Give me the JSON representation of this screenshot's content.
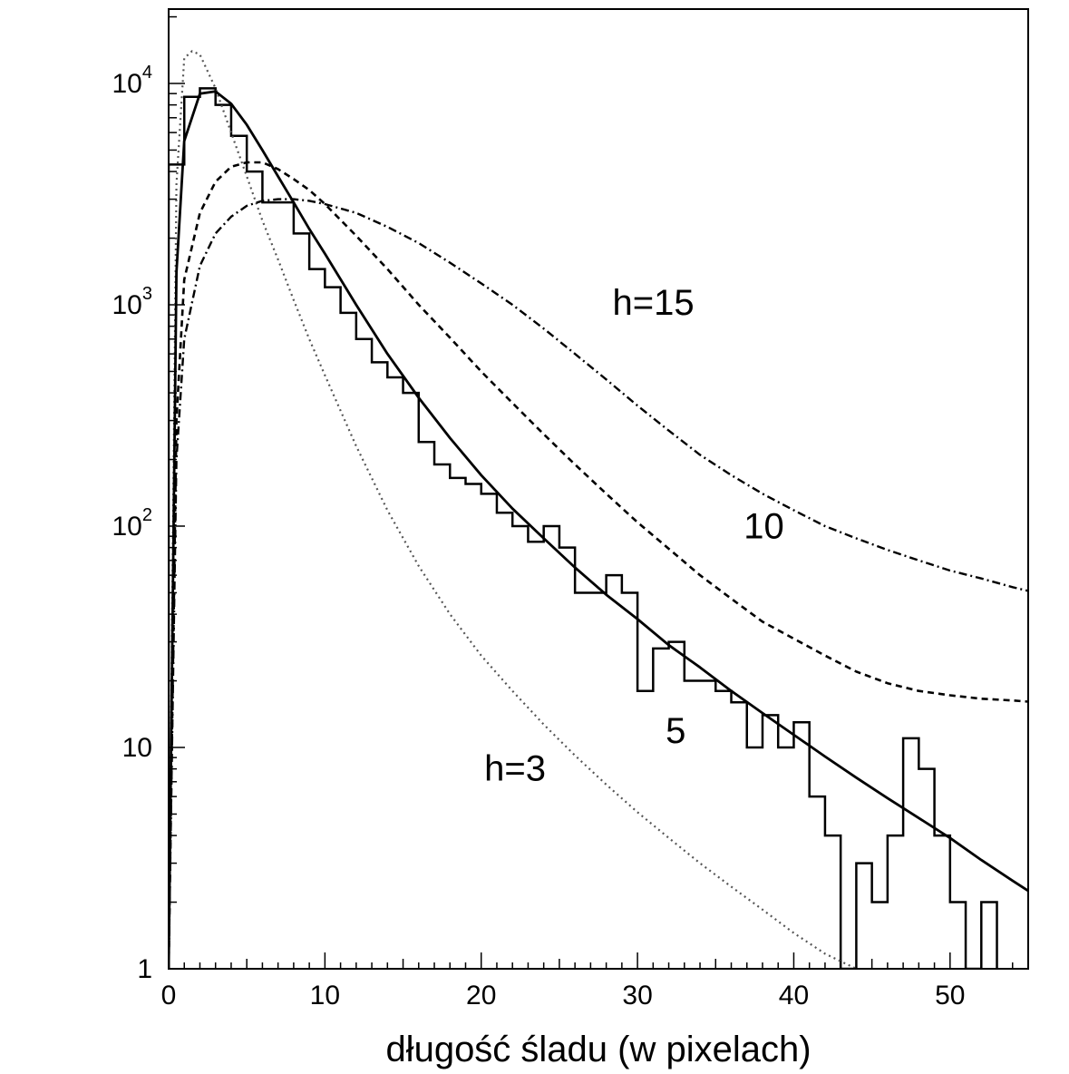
{
  "chart_data": {
    "type": "line",
    "title": "",
    "xlabel": "długość śladu (w pixelach)",
    "ylabel": "",
    "xlim": [
      0,
      55
    ],
    "ylim": [
      1,
      20000
    ],
    "yscale": "log",
    "grid": false,
    "x_ticks": [
      {
        "value": 0,
        "label": "0"
      },
      {
        "value": 10,
        "label": "10"
      },
      {
        "value": 20,
        "label": "20"
      },
      {
        "value": 30,
        "label": "30"
      },
      {
        "value": 40,
        "label": "40"
      },
      {
        "value": 50,
        "label": "50"
      }
    ],
    "y_ticks": [
      {
        "value": 1,
        "base": "1",
        "exp": ""
      },
      {
        "value": 10,
        "base": "10",
        "exp": ""
      },
      {
        "value": 100,
        "base": "10",
        "exp": "2"
      },
      {
        "value": 1000,
        "base": "10",
        "exp": "3"
      },
      {
        "value": 10000,
        "base": "10",
        "exp": "4"
      }
    ],
    "histogram": {
      "bin_width": 1,
      "bin_starts": [
        0,
        1,
        2,
        3,
        4,
        5,
        6,
        7,
        8,
        9,
        10,
        11,
        12,
        13,
        14,
        15,
        16,
        17,
        18,
        19,
        20,
        21,
        22,
        23,
        24,
        25,
        26,
        27,
        28,
        29,
        30,
        31,
        32,
        33,
        34,
        35,
        36,
        37,
        38,
        39,
        40,
        41,
        42,
        43,
        44,
        45,
        46,
        47,
        48,
        49,
        50,
        51,
        52
      ],
      "counts": [
        4300,
        8700,
        9500,
        8000,
        5800,
        4000,
        2900,
        2900,
        2100,
        1450,
        1200,
        920,
        700,
        550,
        470,
        400,
        240,
        190,
        165,
        155,
        140,
        115,
        100,
        85,
        100,
        80,
        50,
        50,
        60,
        50,
        18,
        28,
        30,
        20,
        20,
        18,
        16,
        10,
        14,
        10,
        13,
        6,
        4,
        0,
        3,
        2,
        4,
        11,
        8,
        4,
        2,
        0,
        2
      ]
    },
    "series": [
      {
        "name": "h=3",
        "style": "dotted",
        "x": [
          0,
          0.5,
          1,
          1.5,
          2,
          3,
          4,
          5,
          6,
          7,
          8,
          9,
          10,
          12,
          14,
          16,
          18,
          20,
          22,
          24,
          26,
          28,
          30,
          32,
          34,
          36,
          38,
          40,
          42,
          44,
          46
        ],
        "y": [
          1,
          3500,
          13000,
          14000,
          13500,
          9500,
          6000,
          3800,
          2400,
          1600,
          1050,
          700,
          480,
          230,
          118,
          66,
          40,
          26,
          18,
          12.7,
          9.2,
          6.8,
          5.1,
          3.9,
          3.0,
          2.35,
          1.85,
          1.45,
          1.17,
          1.0,
          0.82
        ]
      },
      {
        "name": "5",
        "style": "solid",
        "x": [
          0,
          0.5,
          1,
          2,
          3,
          4,
          5,
          6,
          7,
          8,
          9,
          10,
          12,
          14,
          16,
          18,
          20,
          22,
          24,
          26,
          28,
          30,
          32,
          34,
          36,
          38,
          40,
          42,
          44,
          46,
          48,
          50,
          52,
          54,
          55
        ],
        "y": [
          1,
          1400,
          5500,
          9000,
          9200,
          8100,
          6500,
          5000,
          3800,
          2900,
          2200,
          1700,
          1000,
          600,
          380,
          250,
          170,
          120,
          88,
          65,
          49,
          38,
          29,
          23,
          18,
          14.3,
          11.4,
          9.1,
          7.3,
          5.9,
          4.8,
          3.9,
          3.1,
          2.5,
          2.25
        ]
      },
      {
        "name": "10",
        "style": "dashed",
        "x": [
          0,
          0.5,
          1,
          2,
          3,
          4,
          5,
          6,
          7,
          8,
          9,
          10,
          12,
          14,
          16,
          18,
          20,
          22,
          24,
          26,
          28,
          30,
          32,
          34,
          36,
          38,
          40,
          42,
          44,
          46,
          48,
          50,
          52,
          54,
          55
        ],
        "y": [
          1,
          300,
          1300,
          2600,
          3600,
          4200,
          4400,
          4400,
          4100,
          3700,
          3300,
          2850,
          2050,
          1450,
          1000,
          710,
          500,
          360,
          260,
          190,
          140,
          104,
          79,
          60,
          47,
          37,
          31,
          26,
          22,
          19.5,
          18,
          17.2,
          16.6,
          16.3,
          16.1
        ]
      },
      {
        "name": "h=15",
        "style": "dashdot",
        "x": [
          0,
          0.5,
          1,
          2,
          3,
          4,
          5,
          6,
          7,
          8,
          9,
          10,
          12,
          14,
          16,
          18,
          20,
          22,
          24,
          26,
          28,
          30,
          32,
          34,
          36,
          38,
          40,
          42,
          44,
          46,
          48,
          50,
          52,
          54,
          55
        ],
        "y": [
          1,
          200,
          700,
          1500,
          2100,
          2500,
          2800,
          2950,
          3000,
          3000,
          2950,
          2850,
          2600,
          2250,
          1900,
          1550,
          1250,
          1000,
          780,
          600,
          460,
          350,
          270,
          210,
          170,
          140,
          118,
          100,
          88,
          78,
          70,
          63,
          58,
          53,
          51
        ]
      }
    ],
    "annotations": [
      {
        "text": "h=15",
        "x": 28.4,
        "y": 900
      },
      {
        "text": "10",
        "x": 36.8,
        "y": 88
      },
      {
        "text": "5",
        "x": 31.8,
        "y": 10.5
      },
      {
        "text": "h=3",
        "x": 20.2,
        "y": 7.1
      }
    ]
  }
}
